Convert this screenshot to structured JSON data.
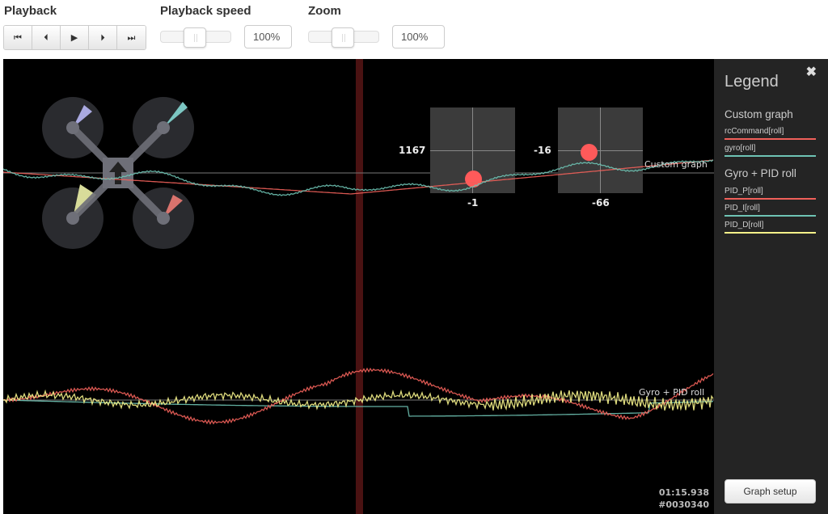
{
  "toolbar": {
    "playback_label": "Playback",
    "buttons": [
      {
        "icon": "skip-to-start-icon",
        "glyph": "⏮"
      },
      {
        "icon": "step-back-icon",
        "glyph": "⏴"
      },
      {
        "icon": "play-icon",
        "glyph": "▶"
      },
      {
        "icon": "step-forward-icon",
        "glyph": "⏵"
      },
      {
        "icon": "skip-to-end-icon",
        "glyph": "⏭"
      }
    ],
    "speed_label": "Playback speed",
    "speed_value": "100%",
    "speed_slider": 0.5,
    "zoom_label": "Zoom",
    "zoom_value": "100%",
    "zoom_slider": 0.5
  },
  "graph": {
    "custom_graph_label": "Custom graph",
    "pid_graph_label": "Gyro + PID roll",
    "stick_left": {
      "vertical": "1167",
      "horizontal": "-1"
    },
    "stick_right": {
      "vertical": "-16",
      "horizontal": "-66"
    },
    "time": "01:15.938",
    "frame": "#0030340",
    "motor_colors": [
      "#a9a9e0",
      "#7cc6c2",
      "#d8dc9a",
      "#d9736d"
    ]
  },
  "legend": {
    "title": "Legend",
    "close_icon": "close-icon",
    "groups": [
      {
        "title": "Custom graph",
        "items": [
          {
            "label": "rcCommand[roll]",
            "color": "#f0605a"
          },
          {
            "label": "gyro[roll]",
            "color": "#6ec3b4"
          }
        ]
      },
      {
        "title": "Gyro + PID roll",
        "items": [
          {
            "label": "PID_P[roll]",
            "color": "#f0605a"
          },
          {
            "label": "PID_I[roll]",
            "color": "#6ec3b4"
          },
          {
            "label": "PID_D[roll]",
            "color": "#f5f28a"
          }
        ]
      }
    ],
    "graph_setup_label": "Graph setup"
  }
}
